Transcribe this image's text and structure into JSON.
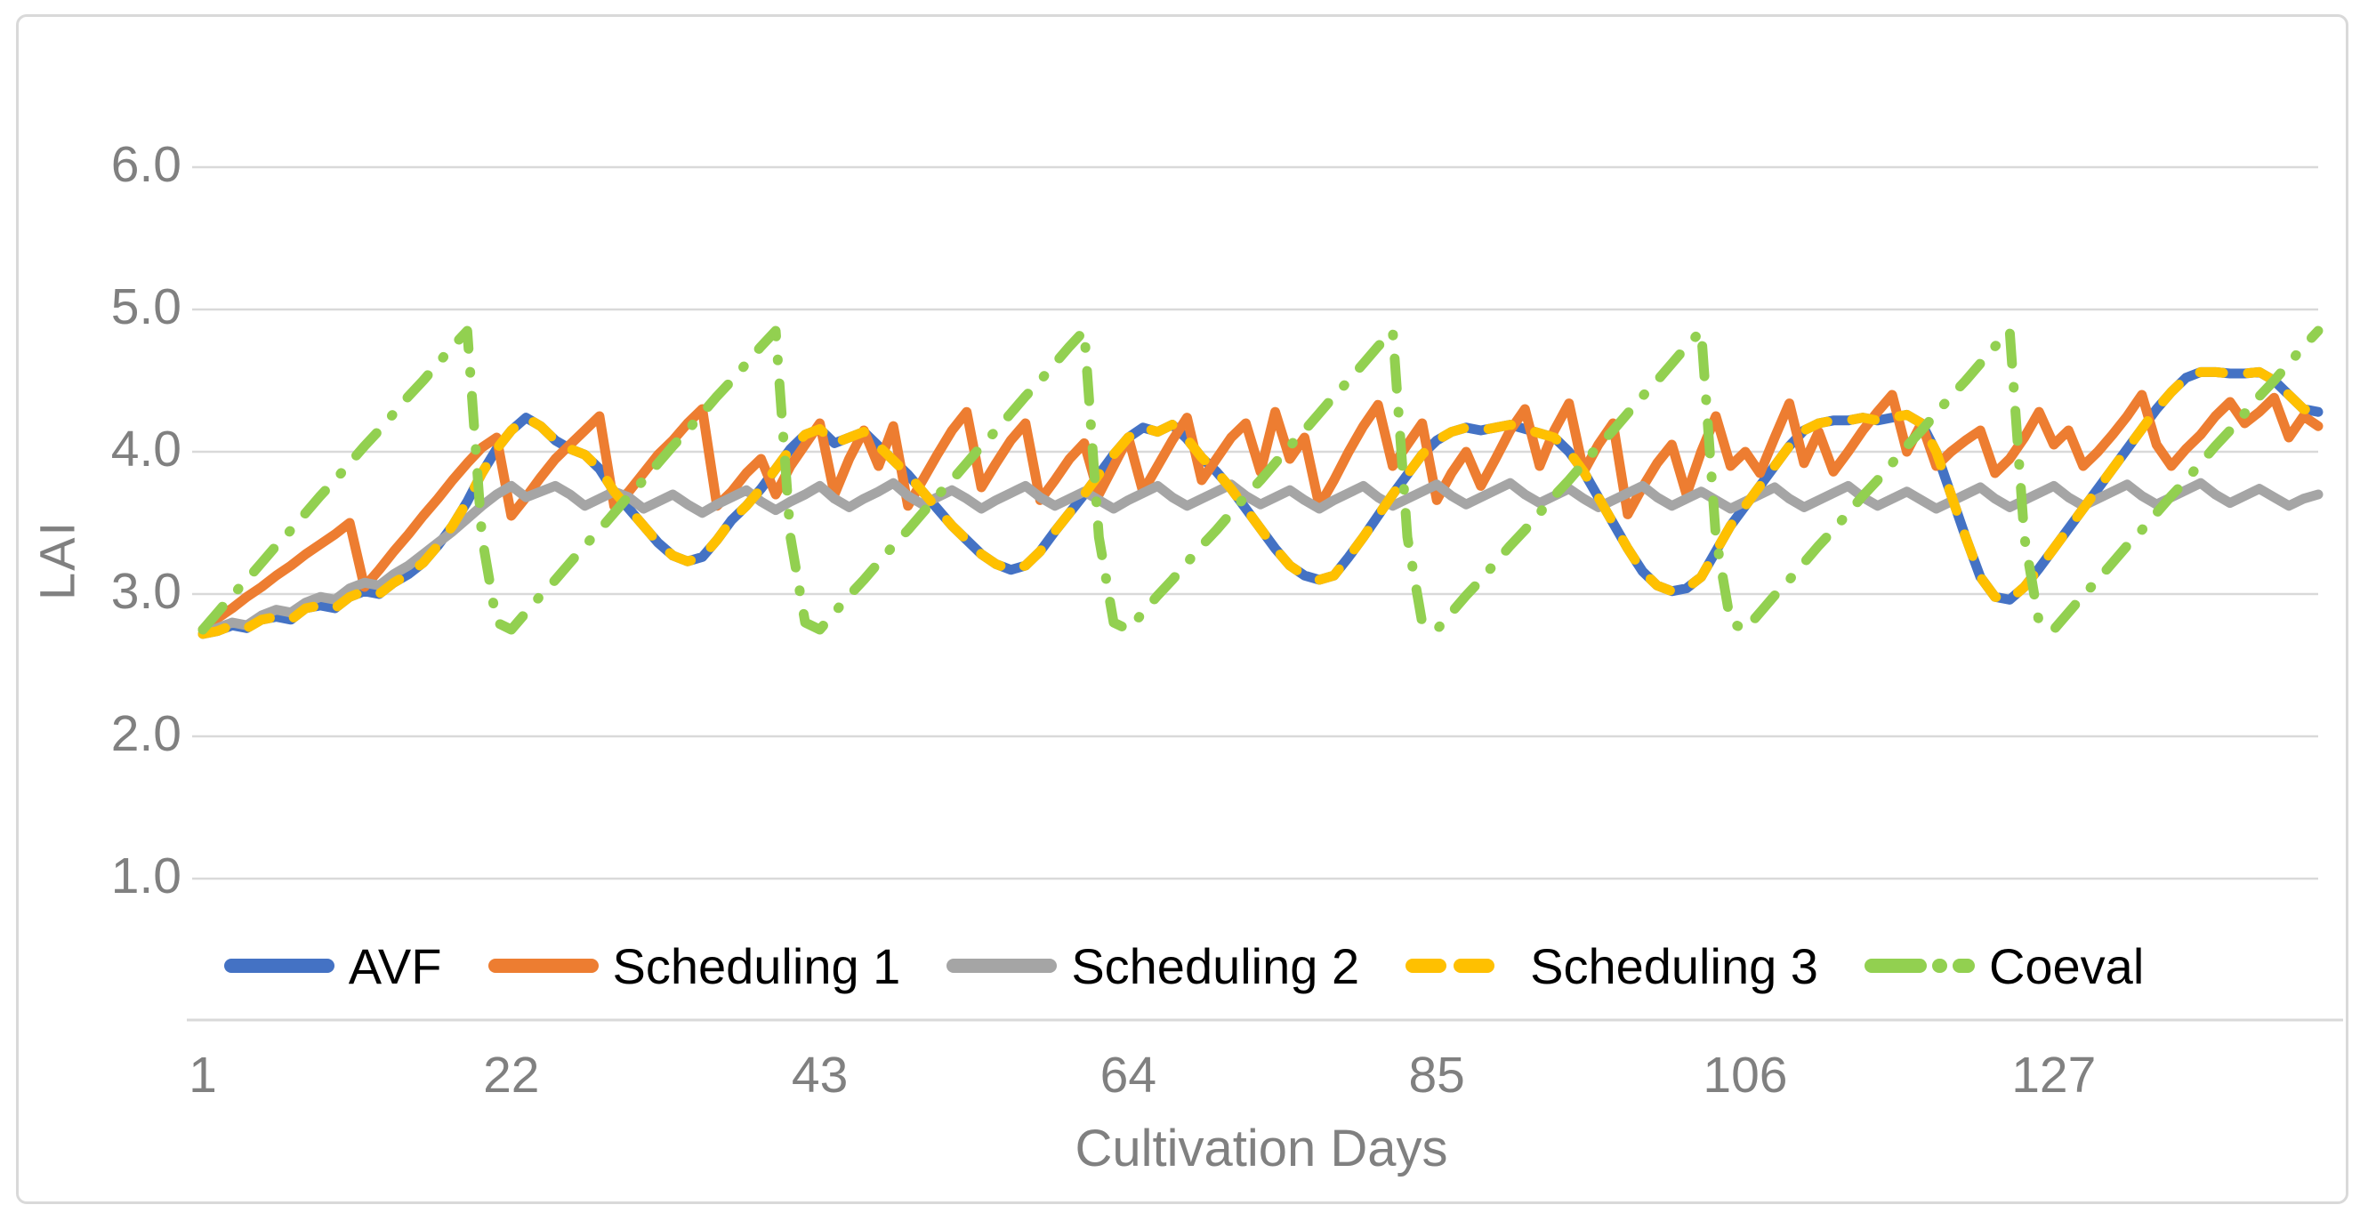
{
  "figure": {
    "background_color": "#ffffff",
    "frame_color": "#d9d9d9",
    "gridline_color": "#d9d9d9",
    "axis_text_color": "#808080",
    "legend_text_color": "#000000"
  },
  "chart_data": {
    "type": "line",
    "title": "",
    "xlabel": "Cultivation Days",
    "ylabel": "LAI",
    "x_ticks": [
      1,
      22,
      43,
      64,
      85,
      106,
      127
    ],
    "y_ticks": [
      {
        "value": 1,
        "label": "1.0"
      },
      {
        "value": 2,
        "label": "2.0"
      },
      {
        "value": 3,
        "label": "3.0"
      },
      {
        "value": 4,
        "label": "4.0"
      },
      {
        "value": 5,
        "label": "5.0"
      },
      {
        "value": 6,
        "label": "6.0"
      }
    ],
    "xlim": [
      1,
      145
    ],
    "ylim": [
      0,
      6.5
    ],
    "grid": "horizontal",
    "legend_position": "bottom",
    "x_unit": "day",
    "series": [
      {
        "name": "AVF",
        "color": "#4472C4",
        "style": "solid",
        "values": [
          2.72,
          2.74,
          2.78,
          2.76,
          2.82,
          2.84,
          2.82,
          2.9,
          2.92,
          2.9,
          2.98,
          3.02,
          3.0,
          3.08,
          3.14,
          3.22,
          3.34,
          3.48,
          3.65,
          3.85,
          4.02,
          4.15,
          4.24,
          4.18,
          4.08,
          4.02,
          3.98,
          3.88,
          3.72,
          3.6,
          3.48,
          3.36,
          3.27,
          3.23,
          3.26,
          3.38,
          3.52,
          3.62,
          3.74,
          3.88,
          4.02,
          4.12,
          4.16,
          4.06,
          4.1,
          4.14,
          4.04,
          3.94,
          3.84,
          3.72,
          3.6,
          3.48,
          3.38,
          3.28,
          3.21,
          3.17,
          3.2,
          3.3,
          3.44,
          3.57,
          3.7,
          3.84,
          3.98,
          4.1,
          4.17,
          4.14,
          4.19,
          4.09,
          3.96,
          3.86,
          3.74,
          3.6,
          3.46,
          3.32,
          3.2,
          3.13,
          3.1,
          3.13,
          3.26,
          3.4,
          3.55,
          3.7,
          3.84,
          3.98,
          4.08,
          4.14,
          4.17,
          4.15,
          4.17,
          4.19,
          4.16,
          4.13,
          4.1,
          4.0,
          3.86,
          3.68,
          3.5,
          3.32,
          3.16,
          3.06,
          3.02,
          3.04,
          3.12,
          3.3,
          3.48,
          3.62,
          3.76,
          3.9,
          4.04,
          4.15,
          4.2,
          4.22,
          4.22,
          4.24,
          4.22,
          4.24,
          4.26,
          4.2,
          4.0,
          3.7,
          3.4,
          3.12,
          2.98,
          2.96,
          3.05,
          3.18,
          3.32,
          3.46,
          3.6,
          3.74,
          3.88,
          4.02,
          4.16,
          4.3,
          4.42,
          4.52,
          4.56,
          4.56,
          4.55,
          4.55,
          4.56,
          4.5,
          4.4,
          4.3,
          4.28
        ]
      },
      {
        "name": "Scheduling 1",
        "color": "#ED7D31",
        "style": "solid",
        "values": [
          2.75,
          2.83,
          2.9,
          2.98,
          3.05,
          3.13,
          3.2,
          3.28,
          3.35,
          3.42,
          3.5,
          3.05,
          3.17,
          3.3,
          3.42,
          3.55,
          3.67,
          3.8,
          3.92,
          4.03,
          4.1,
          3.55,
          3.68,
          3.82,
          3.95,
          4.05,
          4.15,
          4.25,
          3.62,
          3.72,
          3.85,
          3.98,
          4.08,
          4.2,
          4.3,
          3.62,
          3.72,
          3.85,
          3.95,
          3.7,
          3.9,
          4.05,
          4.2,
          3.7,
          3.95,
          4.15,
          3.9,
          4.18,
          3.62,
          3.8,
          3.98,
          4.15,
          4.28,
          3.75,
          3.92,
          4.08,
          4.2,
          3.66,
          3.8,
          3.95,
          4.06,
          3.7,
          3.9,
          4.1,
          3.72,
          3.9,
          4.08,
          4.24,
          3.8,
          3.95,
          4.1,
          4.2,
          3.86,
          4.28,
          3.95,
          4.1,
          3.62,
          3.8,
          4.0,
          4.18,
          4.33,
          3.9,
          4.05,
          4.2,
          3.66,
          3.85,
          4.0,
          3.76,
          3.95,
          4.15,
          4.3,
          3.9,
          4.15,
          4.34,
          3.86,
          4.05,
          4.2,
          3.56,
          3.75,
          3.92,
          4.05,
          3.7,
          4.0,
          4.25,
          3.9,
          4.0,
          3.85,
          4.1,
          4.34,
          3.92,
          4.14,
          3.86,
          4.0,
          4.15,
          4.28,
          4.4,
          4.0,
          4.2,
          3.9,
          4.0,
          4.08,
          4.15,
          3.85,
          3.95,
          4.1,
          4.28,
          4.05,
          4.15,
          3.9,
          4.0,
          4.12,
          4.25,
          4.4,
          4.05,
          3.9,
          4.02,
          4.12,
          4.25,
          4.35,
          4.2,
          4.28,
          4.38,
          4.1,
          4.25,
          4.18
        ]
      },
      {
        "name": "Scheduling 2",
        "color": "#A5A5A5",
        "style": "solid",
        "values": [
          2.72,
          2.76,
          2.8,
          2.78,
          2.85,
          2.89,
          2.87,
          2.94,
          2.98,
          2.96,
          3.04,
          3.08,
          3.06,
          3.14,
          3.2,
          3.28,
          3.36,
          3.44,
          3.53,
          3.62,
          3.7,
          3.76,
          3.68,
          3.72,
          3.76,
          3.7,
          3.62,
          3.67,
          3.72,
          3.68,
          3.6,
          3.65,
          3.7,
          3.63,
          3.57,
          3.63,
          3.68,
          3.73,
          3.65,
          3.59,
          3.65,
          3.7,
          3.76,
          3.67,
          3.61,
          3.67,
          3.72,
          3.78,
          3.69,
          3.63,
          3.68,
          3.73,
          3.67,
          3.6,
          3.66,
          3.71,
          3.76,
          3.68,
          3.62,
          3.67,
          3.72,
          3.66,
          3.6,
          3.66,
          3.71,
          3.76,
          3.68,
          3.62,
          3.67,
          3.72,
          3.77,
          3.69,
          3.63,
          3.68,
          3.73,
          3.66,
          3.6,
          3.66,
          3.71,
          3.76,
          3.68,
          3.62,
          3.67,
          3.72,
          3.77,
          3.69,
          3.63,
          3.68,
          3.73,
          3.78,
          3.7,
          3.64,
          3.69,
          3.74,
          3.67,
          3.61,
          3.66,
          3.71,
          3.76,
          3.68,
          3.62,
          3.67,
          3.72,
          3.66,
          3.6,
          3.65,
          3.7,
          3.75,
          3.67,
          3.61,
          3.66,
          3.71,
          3.76,
          3.68,
          3.62,
          3.67,
          3.72,
          3.66,
          3.6,
          3.65,
          3.7,
          3.75,
          3.67,
          3.61,
          3.66,
          3.71,
          3.76,
          3.68,
          3.62,
          3.67,
          3.72,
          3.77,
          3.69,
          3.63,
          3.68,
          3.73,
          3.78,
          3.7,
          3.64,
          3.69,
          3.74,
          3.68,
          3.62,
          3.67,
          3.7
        ]
      },
      {
        "name": "Scheduling 3",
        "color": "#FFC000",
        "style": "dashed",
        "values": [
          2.72,
          2.74,
          2.78,
          2.76,
          2.82,
          2.84,
          2.82,
          2.9,
          2.92,
          2.9,
          2.98,
          3.02,
          3.0,
          3.08,
          3.14,
          3.22,
          3.34,
          3.48,
          3.65,
          3.85,
          4.02,
          4.15,
          4.24,
          4.18,
          4.08,
          4.02,
          3.98,
          3.88,
          3.72,
          3.6,
          3.48,
          3.36,
          3.27,
          3.23,
          3.26,
          3.38,
          3.52,
          3.62,
          3.74,
          3.88,
          4.02,
          4.12,
          4.16,
          4.06,
          4.1,
          4.14,
          4.04,
          3.94,
          3.84,
          3.72,
          3.6,
          3.48,
          3.38,
          3.28,
          3.21,
          3.17,
          3.2,
          3.3,
          3.44,
          3.57,
          3.7,
          3.84,
          3.98,
          4.1,
          4.17,
          4.14,
          4.19,
          4.09,
          3.96,
          3.86,
          3.74,
          3.6,
          3.46,
          3.32,
          3.2,
          3.13,
          3.1,
          3.13,
          3.26,
          3.4,
          3.55,
          3.7,
          3.84,
          3.98,
          4.08,
          4.14,
          4.17,
          4.15,
          4.17,
          4.19,
          4.16,
          4.13,
          4.1,
          4.0,
          3.86,
          3.68,
          3.5,
          3.32,
          3.16,
          3.06,
          3.02,
          3.04,
          3.12,
          3.3,
          3.48,
          3.62,
          3.76,
          3.9,
          4.04,
          4.15,
          4.2,
          4.22,
          4.22,
          4.24,
          4.22,
          4.24,
          4.26,
          4.2,
          4.0,
          3.7,
          3.4,
          3.12,
          2.98,
          2.96,
          3.05,
          3.18,
          3.32,
          3.46,
          3.6,
          3.74,
          3.88,
          4.02,
          4.16,
          4.3,
          4.42,
          4.52,
          4.56,
          4.56,
          4.55,
          4.55,
          4.56,
          4.5,
          4.4,
          4.3,
          4.28
        ]
      },
      {
        "name": "Coeval",
        "color": "#92D050",
        "style": "dash-dot",
        "values": [
          2.75,
          2.87,
          2.99,
          3.1,
          3.22,
          3.34,
          3.45,
          3.57,
          3.69,
          3.8,
          3.92,
          4.04,
          4.15,
          4.27,
          4.39,
          4.5,
          4.62,
          4.74,
          4.85,
          3.4,
          2.8,
          2.75,
          2.87,
          2.99,
          3.1,
          3.22,
          3.34,
          3.45,
          3.57,
          3.69,
          3.8,
          3.92,
          4.04,
          4.15,
          4.27,
          4.39,
          4.5,
          4.62,
          4.74,
          4.85,
          3.4,
          2.8,
          2.75,
          2.87,
          2.99,
          3.1,
          3.22,
          3.34,
          3.45,
          3.57,
          3.69,
          3.8,
          3.92,
          4.04,
          4.15,
          4.27,
          4.39,
          4.5,
          4.62,
          4.74,
          4.85,
          3.4,
          2.8,
          2.75,
          2.87,
          2.99,
          3.1,
          3.22,
          3.34,
          3.45,
          3.57,
          3.69,
          3.8,
          3.92,
          4.04,
          4.15,
          4.27,
          4.39,
          4.5,
          4.62,
          4.74,
          4.85,
          3.4,
          2.8,
          2.75,
          2.87,
          2.99,
          3.1,
          3.22,
          3.34,
          3.45,
          3.57,
          3.69,
          3.8,
          3.92,
          4.04,
          4.15,
          4.27,
          4.39,
          4.5,
          4.62,
          4.74,
          4.85,
          3.4,
          2.8,
          2.75,
          2.87,
          2.99,
          3.1,
          3.22,
          3.34,
          3.45,
          3.57,
          3.69,
          3.8,
          3.92,
          4.04,
          4.15,
          4.27,
          4.39,
          4.5,
          4.62,
          4.74,
          4.85,
          3.4,
          2.8,
          2.75,
          2.87,
          2.99,
          3.1,
          3.22,
          3.34,
          3.45,
          3.57,
          3.69,
          3.8,
          3.92,
          4.04,
          4.15,
          4.27,
          4.39,
          4.5,
          4.62,
          4.74,
          4.85
        ]
      }
    ]
  }
}
